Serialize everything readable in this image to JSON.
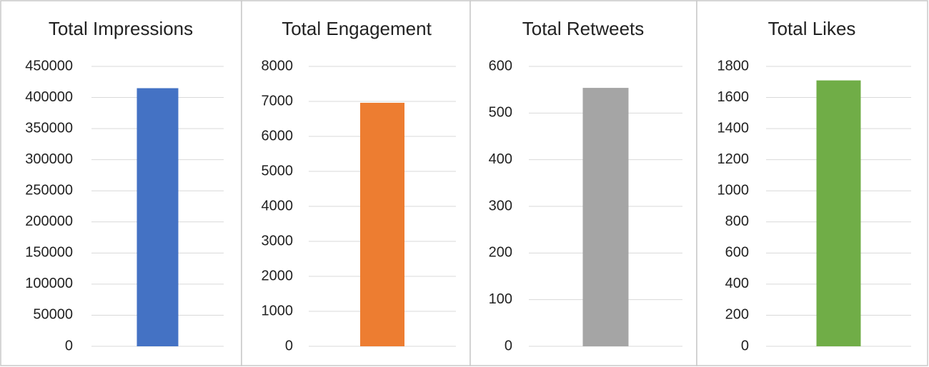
{
  "chart_data": [
    {
      "type": "bar",
      "title": "Total Impressions",
      "categories": [
        null
      ],
      "values": [
        415000
      ],
      "color": "#4472c4",
      "ylim": [
        0,
        450000
      ],
      "yticks": [
        0,
        50000,
        100000,
        150000,
        200000,
        250000,
        300000,
        350000,
        400000,
        450000
      ],
      "grid": true
    },
    {
      "type": "bar",
      "title": "Total Engagement",
      "categories": [
        null
      ],
      "values": [
        6960
      ],
      "color": "#ed7d31",
      "ylim": [
        0,
        8000
      ],
      "yticks": [
        0,
        1000,
        2000,
        3000,
        4000,
        5000,
        6000,
        7000,
        8000
      ],
      "grid": true
    },
    {
      "type": "bar",
      "title": "Total Retweets",
      "categories": [
        null
      ],
      "values": [
        554
      ],
      "color": "#a5a5a5",
      "ylim": [
        0,
        600
      ],
      "yticks": [
        0,
        100,
        200,
        300,
        400,
        500,
        600
      ],
      "grid": true
    },
    {
      "type": "bar",
      "title": "Total Likes",
      "categories": [
        null
      ],
      "values": [
        1710
      ],
      "color": "#70ad47",
      "ylim": [
        0,
        1800
      ],
      "yticks": [
        0,
        200,
        400,
        600,
        800,
        1000,
        1200,
        1400,
        1600,
        1800
      ],
      "grid": true
    }
  ]
}
